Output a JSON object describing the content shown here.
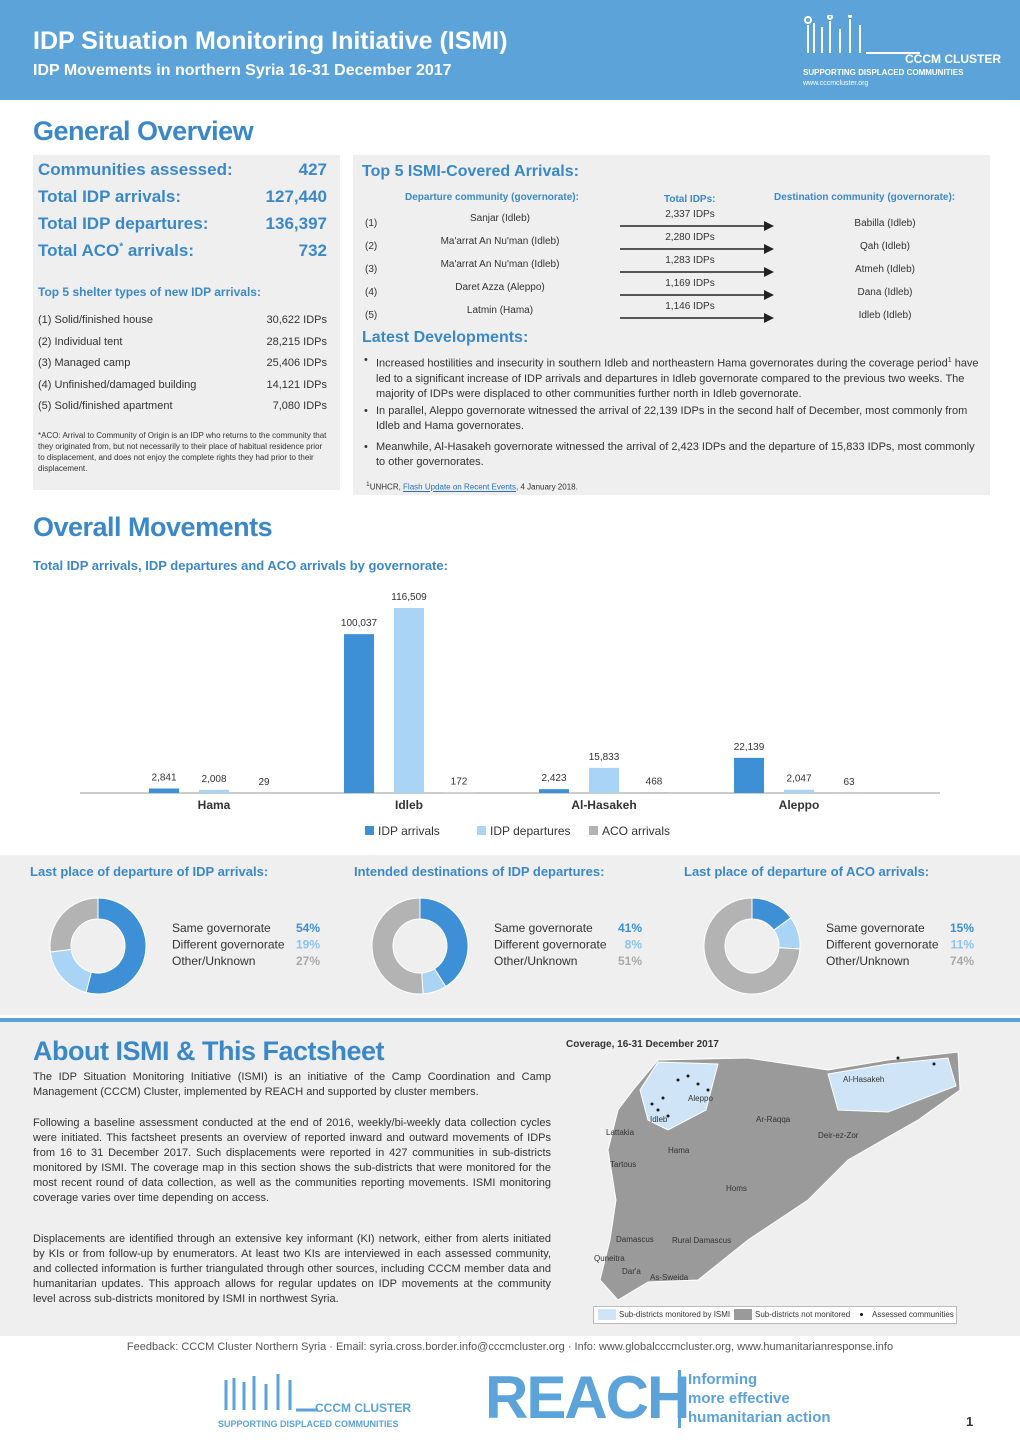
{
  "header": {
    "title": "IDP Situation Monitoring Initiative (ISMI)",
    "subtitle": "IDP Movements in northern Syria 16-31 December 2017",
    "logo_name": "CCCM CLUSTER",
    "logo_tagline": "SUPPORTING DISPLACED COMMUNITIES",
    "logo_url": "www.cccmcluster.org"
  },
  "overview": {
    "heading": "General Overview",
    "stats": [
      {
        "label": "Communities assessed:",
        "value": "427"
      },
      {
        "label": "Total IDP arrivals:",
        "value": "127,440"
      },
      {
        "label": "Total IDP departures:",
        "value": "136,397"
      },
      {
        "label": "Total ACO",
        "mark": "*",
        "label_end": " arrivals:",
        "value": "732"
      }
    ],
    "shelter_heading": "Top 5 shelter types of new IDP arrivals:",
    "shelter_rows": [
      [
        "(1) Solid/finished house",
        "30,622 IDPs"
      ],
      [
        "(2) Individual tent",
        "28,215 IDPs"
      ],
      [
        "(3) Managed camp",
        "25,406 IDPs"
      ],
      [
        "(4) Unfinished/damaged building",
        "14,121 IDPs"
      ],
      [
        "(5) Solid/finished apartment",
        "7,080 IDPs"
      ]
    ],
    "aco_note": "*ACO: Arrival to Community of Origin is an IDP who returns to the community that they originated from, but not necessarily to their place of habitual residence prior to displacement, and does not enjoy the complete rights they had prior to their displacement."
  },
  "top5": {
    "heading": "Top 5 ISMI-Covered Arrivals:",
    "col_departure": "Departure community (governorate):",
    "col_idps": "Total IDPs:",
    "col_destination": "Destination community (governorate):",
    "rows": [
      {
        "num": "(1)",
        "departure": "Sanjar  (Idleb)",
        "idps": "2,337 IDPs",
        "destination": "Babilla (Idleb)"
      },
      {
        "num": "(2)",
        "departure": "Ma'arrat An Nu'man (Idleb)",
        "idps": "2,280 IDPs",
        "destination": "Qah (Idleb)"
      },
      {
        "num": "(3)",
        "departure": "Ma'arrat An Nu'man (Idleb)",
        "idps": "1,283 IDPs",
        "destination": "Atmeh (Idleb)"
      },
      {
        "num": "(4)",
        "departure": "Daret Azza (Aleppo)",
        "idps": "1,169 IDPs",
        "destination": "Dana (Idleb)"
      },
      {
        "num": "(5)",
        "departure": "Latmin (Hama)",
        "idps": "1,146 IDPs",
        "destination": "Idleb (Idleb)"
      }
    ]
  },
  "developments": {
    "heading": "Latest Developments:",
    "bullets": [
      {
        "text": "Increased hostilities and insecurity in southern Idleb and northeastern Hama governorates during the coverage period",
        "sup": "1",
        "text_end": " have led to a significant increase of IDP arrivals and departures in Idleb governorate compared to the previous two weeks. The majority of IDPs were displaced to other communities further north in Idleb governorate."
      },
      {
        "text": "In parallel, Aleppo governorate witnessed the arrival of 22,139 IDPs in the second half of December, most commonly from Idleb and Hama governorates."
      },
      {
        "text": "Meanwhile, Al-Hasakeh governorate witnessed the arrival of 2,423 IDPs and the departure of 15,833 IDPs, most commonly to other governorates."
      }
    ],
    "footnote": {
      "mark": "1",
      "source": "UNHCR, ",
      "link": "Flash Update on Recent Events",
      "date": ", 4 January 2018."
    }
  },
  "movements": {
    "heading": "Overall Movements"
  },
  "chart_data": [
    {
      "type": "bar",
      "title": "Total IDP arrivals, IDP departures and ACO arrivals by governorate:",
      "categories": [
        "Hama",
        "Idleb",
        "Al-Hasakeh",
        "Aleppo"
      ],
      "grid": false,
      "series": [
        {
          "name": "IDP arrivals",
          "color": "#3d8fd6",
          "values": [
            2841,
            100037,
            2423,
            22139
          ],
          "value_labels": [
            "2,841",
            "100,037",
            "2,423",
            "22,139"
          ]
        },
        {
          "name": "IDP departures",
          "color": "#aad4f5",
          "values": [
            2008,
            116509,
            15833,
            2047
          ],
          "value_labels": [
            "2,008",
            "116,509",
            "15,833",
            "2,047"
          ]
        },
        {
          "name": "ACO arrivals",
          "color": "#b3b3b3",
          "values": [
            29,
            172,
            468,
            63
          ]
        }
      ]
    },
    {
      "type": "donut",
      "title": "Last place of departure of IDP arrivals:",
      "categories": [
        "Same governorate",
        "Different governorate",
        "Other/Unknown"
      ],
      "values": [
        54,
        19,
        27
      ],
      "value_labels": [
        "54%",
        "19%",
        "27%"
      ],
      "colors": [
        "#3d8fd6",
        "#aad4f5",
        "#b3b3b3"
      ]
    },
    {
      "type": "donut",
      "title": "Intended destinations of IDP departures:",
      "categories": [
        "Same governorate",
        "Different governorate",
        "Other/Unknown"
      ],
      "values": [
        41,
        8,
        51
      ],
      "value_labels": [
        "41%",
        "8%",
        "51%"
      ],
      "colors": [
        "#3d8fd6",
        "#aad4f5",
        "#b3b3b3"
      ]
    },
    {
      "type": "donut",
      "title": "Last place of departure of ACO arrivals:",
      "categories": [
        "Same governorate",
        "Different governorate",
        "Other/Unknown"
      ],
      "values": [
        15,
        11,
        74
      ],
      "value_labels": [
        "15%",
        "11%",
        "74%"
      ],
      "colors": [
        "#3d8fd6",
        "#aad4f5",
        "#b3b3b3"
      ]
    }
  ],
  "about": {
    "heading": "About ISMI & This Factsheet",
    "paragraphs": [
      "The IDP Situation Monitoring Initiative (ISMI) is an initiative of the Camp Coordination and Camp Management (CCCM) Cluster, implemented by REACH and supported by cluster members.",
      "Following a baseline assessment conducted at the end of 2016, weekly/bi-weekly data collection cycles were initiated. This factsheet presents an overview of reported inward and outward movements of IDPs from 16 to 31 December 2017. Such displacements were reported in 427 communities in sub-districts monitored by ISMI. The coverage map in this section shows the sub-districts that were monitored for the most recent round of data collection, as well as the communities reporting movements. ISMI monitoring coverage varies over time depending on access.",
      "Displacements are identified through an extensive key informant (KI) network, either from alerts initiated by KIs or from follow-up by enumerators. At least two KIs are interviewed in each assessed community, and collected information is further triangulated through other sources, including CCCM member data and humanitarian updates. This approach allows for regular updates on IDP movements at the community level across sub-districts monitored by ISMI in northwest Syria."
    ]
  },
  "map": {
    "title": "Coverage, 16-31 December 2017",
    "labels": [
      "Al-Hasakeh",
      "Aleppo",
      "Idleb",
      "Ar-Raqqa",
      "Lattakia",
      "Deir-ez-Zor",
      "Hama",
      "Tartous",
      "Homs",
      "Damascus",
      "Rural Damascus",
      "Quneitra",
      "Dar'a",
      "As-Sweida"
    ],
    "legend": [
      "Sub-districts monitored by ISMI",
      "Sub-districts not monitored",
      "Assessed communities"
    ]
  },
  "footer": {
    "feedback": "Feedback: CCCM Cluster Northern Syria · Email: syria.cross.border.info@cccmcluster.org · Info: www.globalcccmcluster.org, www.humanitarianresponse.info",
    "logo_name": "CCCM CLUSTER",
    "logo_tagline": "SUPPORTING DISPLACED COMMUNITIES",
    "reach": "REACH",
    "reach_tagline": [
      "Informing",
      "more effective",
      "humanitarian action"
    ],
    "page": "1"
  }
}
